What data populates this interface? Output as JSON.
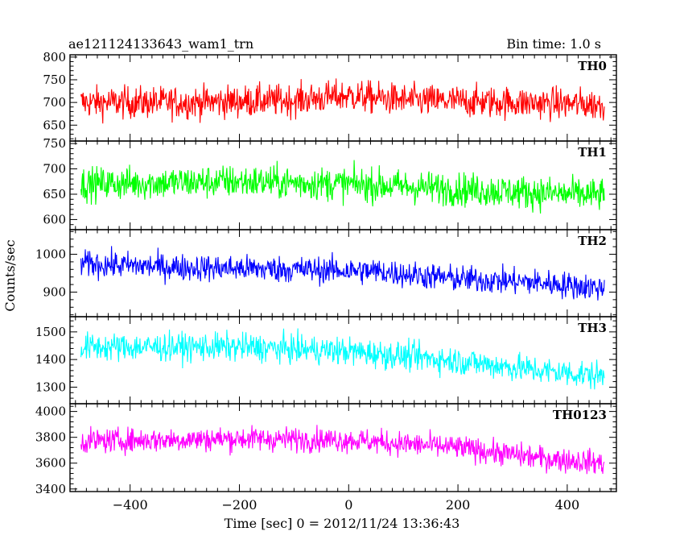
{
  "header": {
    "title": "ae121124133643_wam1_trn",
    "bin_time": "Bin time: 1.0 s"
  },
  "chart_data": {
    "type": "line",
    "ylabel": "Counts/sec",
    "xlabel": "Time [sec] 0 = 2012/11/24 13:36:43",
    "xlim": [
      -510,
      490
    ],
    "x_ticks": [
      -400,
      -200,
      0,
      200,
      400
    ],
    "x_tick_labels": [
      "−400",
      "−200",
      "0",
      "200",
      "400"
    ],
    "x_range_data": [
      -490,
      468
    ],
    "grid": false,
    "panels": [
      {
        "name": "TH0",
        "color": "#ff0000",
        "ylim": [
          615,
          805
        ],
        "yticks": [
          650,
          700,
          750,
          800
        ],
        "ytick_labels": [
          "650",
          "700",
          "750",
          "800"
        ],
        "anchors": [
          [
            -490,
            700
          ],
          [
            -300,
            700
          ],
          [
            -100,
            705
          ],
          [
            0,
            715
          ],
          [
            100,
            705
          ],
          [
            300,
            700
          ],
          [
            468,
            695
          ]
        ],
        "noise_amplitude": 45
      },
      {
        "name": "TH1",
        "color": "#00ff00",
        "ylim": [
          580,
          755
        ],
        "yticks": [
          600,
          650,
          700,
          750
        ],
        "ytick_labels": [
          "600",
          "650",
          "700",
          "750"
        ],
        "anchors": [
          [
            -490,
            670
          ],
          [
            -200,
            675
          ],
          [
            0,
            670
          ],
          [
            200,
            660
          ],
          [
            400,
            650
          ],
          [
            468,
            648
          ]
        ],
        "noise_amplitude": 42
      },
      {
        "name": "TH2",
        "color": "#0000ff",
        "ylim": [
          835,
          1065
        ],
        "yticks": [
          900,
          1000
        ],
        "ytick_labels": [
          "900",
          "1000"
        ],
        "anchors": [
          [
            -490,
            975
          ],
          [
            -300,
            965
          ],
          [
            -100,
            960
          ],
          [
            50,
            955
          ],
          [
            200,
            935
          ],
          [
            350,
            925
          ],
          [
            468,
            910
          ]
        ],
        "noise_amplitude": 45
      },
      {
        "name": "TH3",
        "color": "#00ffff",
        "ylim": [
          1240,
          1555
        ],
        "yticks": [
          1300,
          1400,
          1500
        ],
        "ytick_labels": [
          "1300",
          "1400",
          "1500"
        ],
        "anchors": [
          [
            -490,
            1445
          ],
          [
            -200,
            1445
          ],
          [
            0,
            1430
          ],
          [
            200,
            1395
          ],
          [
            350,
            1360
          ],
          [
            468,
            1340
          ]
        ],
        "noise_amplitude": 65
      },
      {
        "name": "TH0123",
        "color": "#ff00ff",
        "ylim": [
          3380,
          4060
        ],
        "yticks": [
          3400,
          3600,
          3800,
          4000
        ],
        "ytick_labels": [
          "3400",
          "3600",
          "3800",
          "4000"
        ],
        "anchors": [
          [
            -490,
            3770
          ],
          [
            -200,
            3790
          ],
          [
            0,
            3780
          ],
          [
            200,
            3720
          ],
          [
            350,
            3640
          ],
          [
            468,
            3600
          ]
        ],
        "noise_amplitude": 120
      }
    ]
  }
}
